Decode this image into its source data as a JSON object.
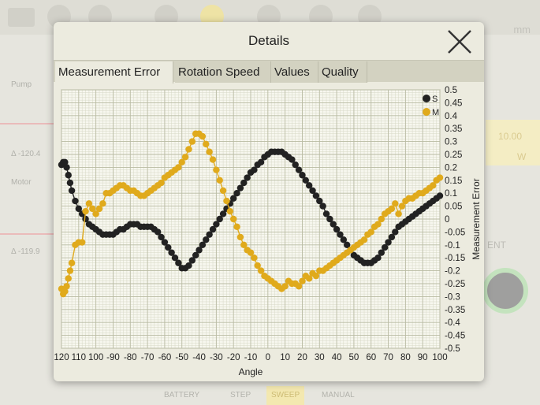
{
  "background": {
    "left_labels": [
      "Pump",
      "Δ -120.4",
      "Motor",
      "Δ -119.9"
    ],
    "unit": "mm",
    "right_values": [
      "10.00",
      "W"
    ],
    "right_caption": "ENT",
    "bottom_buttons": [
      "BATTERY",
      "STEP",
      "SWEEP",
      "MANUAL"
    ]
  },
  "dialog": {
    "title": "Details",
    "close_icon": "close-icon",
    "tabs": [
      {
        "label": "Measurement Error",
        "active": true
      },
      {
        "label": "Rotation Speed",
        "active": false
      },
      {
        "label": "Values",
        "active": false
      },
      {
        "label": "Quality",
        "active": false
      }
    ]
  },
  "chart_data": {
    "type": "line",
    "xlabel": "Angle",
    "ylabel": "Measurement Error",
    "xlim": [
      120,
      100
    ],
    "ylim": [
      -0.5,
      0.5
    ],
    "grid": true,
    "legend_position": "top-right",
    "x_tick_labels": [
      "120",
      "110",
      "100",
      "-90",
      "-80",
      "-70",
      "-60",
      "-50",
      "-40",
      "-30",
      "-20",
      "-10",
      "0",
      "10",
      "20",
      "30",
      "40",
      "50",
      "60",
      "70",
      "80",
      "90",
      "100"
    ],
    "y_tick_labels": [
      "0.5",
      "0.45",
      "0.4",
      "0.35",
      "0.3",
      "0.25",
      "0.2",
      "0.15",
      "0.1",
      "0.05",
      "0",
      "-0.05",
      "-0.1",
      "-0.15",
      "-0.2",
      "-0.25",
      "-0.3",
      "-0.35",
      "-0.4",
      "-0.45",
      "-0.5"
    ],
    "colors": {
      "S": "#222222",
      "M": "#e0aa1c"
    },
    "series": [
      {
        "name": "S",
        "x": [
          -120,
          -119,
          -118,
          -117,
          -116,
          -115,
          -114,
          -112,
          -110,
          -108,
          -106,
          -104,
          -102,
          -100,
          -98,
          -96,
          -94,
          -92,
          -90,
          -88,
          -86,
          -84,
          -82,
          -80,
          -78,
          -76,
          -74,
          -72,
          -70,
          -68,
          -66,
          -64,
          -62,
          -60,
          -58,
          -56,
          -54,
          -52,
          -50,
          -48,
          -46,
          -44,
          -42,
          -40,
          -38,
          -36,
          -34,
          -32,
          -30,
          -28,
          -26,
          -24,
          -22,
          -20,
          -18,
          -16,
          -14,
          -12,
          -10,
          -8,
          -6,
          -4,
          -2,
          0,
          2,
          4,
          6,
          8,
          10,
          12,
          14,
          16,
          18,
          20,
          22,
          24,
          26,
          28,
          30,
          32,
          34,
          36,
          38,
          40,
          42,
          44,
          46,
          48,
          50,
          52,
          54,
          56,
          58,
          60,
          62,
          64,
          66,
          68,
          70,
          72,
          74,
          76,
          78,
          80,
          82,
          84,
          86,
          88,
          90,
          92,
          94,
          96,
          98,
          100
        ],
        "y": [
          0.21,
          0.22,
          0.22,
          0.2,
          0.17,
          0.14,
          0.11,
          0.07,
          0.04,
          0.02,
          0.0,
          -0.02,
          -0.03,
          -0.04,
          -0.05,
          -0.06,
          -0.06,
          -0.06,
          -0.06,
          -0.05,
          -0.04,
          -0.04,
          -0.03,
          -0.02,
          -0.02,
          -0.02,
          -0.03,
          -0.03,
          -0.03,
          -0.03,
          -0.04,
          -0.05,
          -0.07,
          -0.09,
          -0.11,
          -0.13,
          -0.15,
          -0.17,
          -0.19,
          -0.19,
          -0.18,
          -0.16,
          -0.14,
          -0.12,
          -0.1,
          -0.08,
          -0.06,
          -0.04,
          -0.02,
          0.0,
          0.02,
          0.04,
          0.06,
          0.08,
          0.1,
          0.12,
          0.14,
          0.16,
          0.18,
          0.19,
          0.21,
          0.22,
          0.24,
          0.25,
          0.26,
          0.26,
          0.26,
          0.26,
          0.25,
          0.24,
          0.23,
          0.21,
          0.19,
          0.17,
          0.15,
          0.13,
          0.11,
          0.09,
          0.07,
          0.05,
          0.02,
          0.0,
          -0.02,
          -0.04,
          -0.06,
          -0.08,
          -0.1,
          -0.12,
          -0.14,
          -0.15,
          -0.16,
          -0.17,
          -0.17,
          -0.17,
          -0.16,
          -0.15,
          -0.13,
          -0.11,
          -0.09,
          -0.07,
          -0.05,
          -0.03,
          -0.02,
          -0.01,
          0.0,
          0.01,
          0.02,
          0.03,
          0.04,
          0.05,
          0.06,
          0.07,
          0.08,
          0.09
        ],
        "y_final": [
          0.21,
          0.22,
          0.22,
          0.2,
          0.17,
          0.14,
          0.11,
          0.07,
          0.04,
          0.02,
          0.0,
          -0.02,
          -0.03,
          -0.04,
          -0.05,
          -0.06,
          -0.06,
          -0.06,
          -0.06,
          -0.05,
          -0.04,
          -0.04,
          -0.03,
          -0.02,
          -0.02,
          -0.02,
          -0.03,
          -0.03,
          -0.03,
          -0.03,
          -0.04,
          -0.05,
          -0.07,
          -0.09,
          -0.11,
          -0.13,
          -0.15,
          -0.17,
          -0.19,
          -0.19,
          -0.18,
          -0.16,
          -0.14,
          -0.12,
          -0.1,
          -0.08,
          -0.06,
          -0.04,
          -0.02,
          0.0,
          0.02,
          0.04,
          0.06,
          0.08,
          0.1,
          0.12,
          0.14,
          0.16,
          0.18,
          0.19,
          0.21,
          0.22,
          0.24,
          0.25,
          0.26,
          0.26,
          0.26,
          0.26,
          0.25,
          0.24,
          0.23,
          0.21,
          0.19,
          0.17,
          0.15,
          0.13,
          0.11,
          0.09,
          0.07,
          0.05,
          0.02,
          0.0,
          -0.02,
          -0.04,
          -0.06,
          -0.08,
          -0.1,
          -0.12,
          -0.14,
          -0.15,
          -0.16,
          -0.17,
          -0.17,
          -0.17,
          -0.16,
          -0.15,
          -0.13,
          -0.11,
          -0.09,
          -0.07,
          -0.05,
          -0.03,
          -0.02,
          -0.01,
          0.0,
          0.01,
          0.02,
          0.03,
          0.04,
          0.05,
          0.06,
          0.07,
          0.08,
          0.09
        ]
      },
      {
        "name": "M",
        "x": [
          -120,
          -119,
          -118,
          -117,
          -116,
          -115,
          -114,
          -112,
          -110,
          -108,
          -106,
          -104,
          -102,
          -100,
          -98,
          -96,
          -94,
          -92,
          -90,
          -88,
          -86,
          -84,
          -82,
          -80,
          -78,
          -76,
          -74,
          -72,
          -70,
          -68,
          -66,
          -64,
          -62,
          -60,
          -58,
          -56,
          -54,
          -52,
          -50,
          -48,
          -46,
          -44,
          -42,
          -40,
          -38,
          -36,
          -34,
          -32,
          -30,
          -28,
          -26,
          -24,
          -22,
          -20,
          -18,
          -16,
          -14,
          -12,
          -10,
          -8,
          -6,
          -4,
          -2,
          0,
          2,
          4,
          6,
          8,
          10,
          12,
          14,
          16,
          18,
          20,
          22,
          24,
          26,
          28,
          30,
          32,
          34,
          36,
          38,
          40,
          42,
          44,
          46,
          48,
          50,
          52,
          54,
          56,
          58,
          60,
          62,
          64,
          66,
          68,
          70,
          72,
          74,
          76,
          78,
          80,
          82,
          84,
          86,
          88,
          90,
          92,
          94,
          96,
          98,
          100
        ],
        "y": [
          -0.27,
          -0.29,
          -0.28,
          -0.26,
          -0.23,
          -0.2,
          -0.17,
          -0.1,
          -0.09,
          -0.09,
          0.03,
          0.06,
          0.04,
          0.02,
          0.04,
          0.06,
          0.1,
          0.1,
          0.11,
          0.12,
          0.13,
          0.13,
          0.12,
          0.11,
          0.11,
          0.1,
          0.09,
          0.09,
          0.1,
          0.11,
          0.12,
          0.13,
          0.14,
          0.16,
          0.17,
          0.18,
          0.19,
          0.2,
          0.22,
          0.24,
          0.27,
          0.3,
          0.33,
          0.33,
          0.32,
          0.29,
          0.26,
          0.23,
          0.19,
          0.15,
          0.11,
          0.07,
          0.03,
          0.0,
          -0.03,
          -0.07,
          -0.1,
          -0.12,
          -0.13,
          -0.15,
          -0.18,
          -0.2,
          -0.22,
          -0.23,
          -0.24,
          -0.25,
          -0.26,
          -0.27,
          -0.26,
          -0.24,
          -0.25,
          -0.25,
          -0.26,
          -0.24,
          -0.22,
          -0.23,
          -0.21,
          -0.22,
          -0.2,
          -0.2,
          -0.19,
          -0.18,
          -0.17,
          -0.16,
          -0.15,
          -0.14,
          -0.13,
          -0.12,
          -0.11,
          -0.1,
          -0.09,
          -0.08,
          -0.06,
          -0.05,
          -0.03,
          -0.02,
          0.0,
          0.02,
          0.03,
          0.04,
          0.06,
          0.02,
          0.05,
          0.07,
          0.08,
          0.08,
          0.09,
          0.1,
          0.1,
          0.11,
          0.12,
          0.13,
          0.15,
          0.16
        ]
      }
    ]
  }
}
